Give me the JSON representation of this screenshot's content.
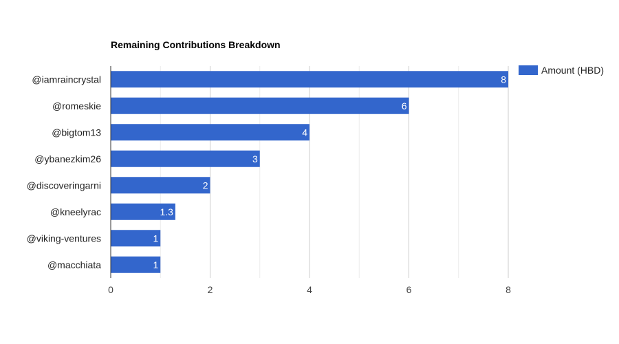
{
  "chart_data": {
    "type": "bar",
    "orientation": "horizontal",
    "title": "Remaining Contributions Breakdown",
    "xlabel": "",
    "ylabel": "",
    "categories": [
      "@iamraincrystal",
      "@romeskie",
      "@bigtom13",
      "@ybanezkim26",
      "@discoveringarni",
      "@kneelyrac",
      "@viking-ventures",
      "@macchiata"
    ],
    "series": [
      {
        "name": "Amount (HBD)",
        "values": [
          8,
          6,
          4,
          3,
          2,
          1.3,
          1,
          1
        ],
        "data_labels": [
          "8",
          "6",
          "4",
          "3",
          "2",
          "1.3",
          "1",
          "1"
        ],
        "color": "#3366cc"
      }
    ],
    "xlim": [
      0,
      8
    ],
    "xticks": [
      0,
      2,
      4,
      6,
      8
    ],
    "grid": true,
    "legend_position": "top-right"
  }
}
